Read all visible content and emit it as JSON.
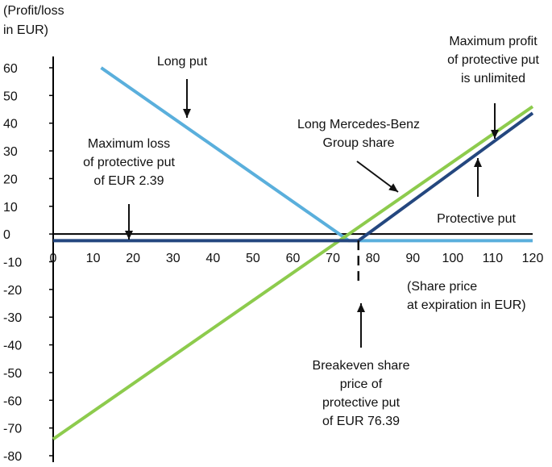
{
  "chart_data": {
    "type": "line",
    "ylabel_lines": [
      "(Profit/loss",
      "in EUR)"
    ],
    "xlabel_lines": [
      "(Share price",
      "at expiration in EUR)"
    ],
    "xlim": [
      0,
      120
    ],
    "ylim": [
      -80,
      60
    ],
    "x_ticks": [
      0,
      10,
      20,
      30,
      40,
      50,
      60,
      70,
      80,
      90,
      100,
      110,
      120
    ],
    "y_ticks": [
      60,
      50,
      40,
      30,
      20,
      10,
      0,
      -10,
      -20,
      -30,
      -40,
      -50,
      -60,
      -70,
      -80
    ],
    "grid": false,
    "series": [
      {
        "name": "Long put",
        "color": "#5AAFDC",
        "points": [
          [
            12,
            60
          ],
          [
            74,
            -2.39
          ],
          [
            120,
            -2.39
          ]
        ]
      },
      {
        "name": "Long Mercedes-Benz Group share",
        "color": "#8DCB4D",
        "points": [
          [
            0,
            -74
          ],
          [
            120,
            46
          ]
        ]
      },
      {
        "name": "Protective put",
        "color": "#24477F",
        "points": [
          [
            0,
            -2.39
          ],
          [
            76.39,
            -2.39
          ],
          [
            120,
            43.61
          ]
        ]
      }
    ],
    "annotations": [
      {
        "id": "long-put",
        "lines": [
          "Long put"
        ]
      },
      {
        "id": "max-profit",
        "lines": [
          "Maximum profit",
          "of protective put",
          "is unlimited"
        ]
      },
      {
        "id": "long-share",
        "lines": [
          "Long Mercedes-Benz",
          "Group share"
        ]
      },
      {
        "id": "max-loss",
        "lines": [
          "Maximum loss",
          "of protective put",
          "of EUR 2.39"
        ]
      },
      {
        "id": "protective-put",
        "lines": [
          "Protective put"
        ]
      },
      {
        "id": "breakeven",
        "lines": [
          "Breakeven share",
          "price of",
          "protective put",
          "of EUR 76.39"
        ]
      }
    ]
  }
}
